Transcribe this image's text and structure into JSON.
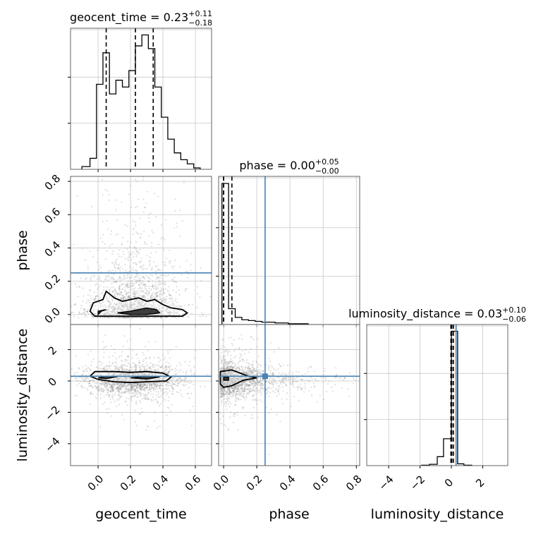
{
  "chart_data": {
    "type": "corner",
    "parameters": [
      "geocent_time",
      "phase",
      "luminosity_distance"
    ],
    "truths": {
      "geocent_time": null,
      "phase": 0.25,
      "luminosity_distance": 0.3
    },
    "colors": {
      "hist": "#000000",
      "truth": "#4682b4",
      "grid": "#c8c8c8",
      "scatter": "#8c8c8c"
    },
    "grid": true,
    "panels": {
      "hist_geocent_time": {
        "title": {
          "prefix": "geocent_time = ",
          "value": "0.23",
          "upper": "+0.11",
          "lower": "−0.18"
        },
        "quantiles": [
          0.05,
          0.23,
          0.34
        ],
        "xlim": [
          -0.17,
          0.7
        ],
        "bin_edges": [
          -0.1,
          -0.05,
          -0.01,
          0.03,
          0.07,
          0.11,
          0.15,
          0.19,
          0.23,
          0.27,
          0.31,
          0.35,
          0.39,
          0.43,
          0.47,
          0.51,
          0.55,
          0.59,
          0.63
        ],
        "counts": [
          2,
          8,
          62,
          85,
          55,
          65,
          60,
          72,
          90,
          98,
          88,
          60,
          38,
          22,
          12,
          7,
          4,
          1
        ]
      },
      "hist_phase": {
        "title": {
          "prefix": "phase = ",
          "value": "0.00",
          "upper": "+0.05",
          "lower": "−0.00"
        },
        "quantiles": [
          0.0,
          0.0,
          0.05
        ],
        "xlim": [
          -0.03,
          0.82
        ],
        "bin_edges": [
          -0.01,
          0.03,
          0.07,
          0.11,
          0.15,
          0.19,
          0.23,
          0.27,
          0.31,
          0.35,
          0.39,
          0.43,
          0.47,
          0.51
        ],
        "counts": [
          178,
          20,
          9,
          6,
          5,
          4,
          3,
          3,
          2,
          2,
          1,
          1,
          1
        ]
      },
      "hist_luminosity_distance": {
        "title": {
          "prefix": "luminosity_distance = ",
          "value": "0.03",
          "upper": "+0.10",
          "lower": "−0.06"
        },
        "quantiles": [
          -0.03,
          0.03,
          0.13
        ],
        "xlim": [
          -5.4,
          3.6
        ],
        "bin_edges": [
          -1.9,
          -1.4,
          -0.9,
          -0.5,
          0.0,
          0.4,
          0.8,
          1.3
        ],
        "counts": [
          1,
          3,
          20,
          60,
          300,
          4,
          1
        ]
      },
      "scatter_phase_vs_geocent_time": {
        "xlim": [
          -0.17,
          0.7
        ],
        "ylim": [
          -0.06,
          0.83
        ],
        "contours": [
          [
            [
              -0.05,
              0.02
            ],
            [
              -0.03,
              0.07
            ],
            [
              0.03,
              0.09
            ],
            [
              0.05,
              0.14
            ],
            [
              0.1,
              0.1
            ],
            [
              0.15,
              0.08
            ],
            [
              0.2,
              0.09
            ],
            [
              0.25,
              0.1
            ],
            [
              0.3,
              0.08
            ],
            [
              0.35,
              0.09
            ],
            [
              0.4,
              0.06
            ],
            [
              0.45,
              0.04
            ],
            [
              0.52,
              0.03
            ],
            [
              0.55,
              0.01
            ],
            [
              0.52,
              -0.01
            ],
            [
              0.45,
              -0.01
            ],
            [
              0.35,
              -0.01
            ],
            [
              0.25,
              -0.01
            ],
            [
              0.15,
              -0.01
            ],
            [
              0.05,
              -0.01
            ],
            [
              -0.02,
              -0.01
            ],
            [
              -0.05,
              0.02
            ]
          ],
          [
            [
              0.0,
              0.0
            ],
            [
              0.0,
              0.02
            ],
            [
              0.05,
              0.03
            ],
            [
              0.02,
              0.02
            ],
            [
              0.0,
              0.0
            ]
          ],
          [
            [
              0.12,
              0.01
            ],
            [
              0.2,
              0.02
            ],
            [
              0.3,
              0.04
            ],
            [
              0.36,
              0.03
            ],
            [
              0.38,
              0.01
            ],
            [
              0.3,
              0.0
            ],
            [
              0.2,
              0.0
            ],
            [
              0.12,
              0.01
            ]
          ]
        ],
        "points": {
          "count": 1800,
          "mean_x": 0.22,
          "sd_x": 0.15,
          "phase_scale": 0.1
        }
      },
      "scatter_luminosity_distance_vs_geocent_time": {
        "xlim": [
          -0.17,
          0.7
        ],
        "ylim": [
          -5.4,
          3.6
        ],
        "contours": [
          [
            [
              -0.05,
              0.3
            ],
            [
              -0.02,
              0.6
            ],
            [
              0.1,
              0.6
            ],
            [
              0.2,
              0.55
            ],
            [
              0.3,
              0.6
            ],
            [
              0.4,
              0.5
            ],
            [
              0.45,
              0.25
            ],
            [
              0.42,
              0.0
            ],
            [
              0.3,
              -0.05
            ],
            [
              0.2,
              -0.1
            ],
            [
              0.1,
              -0.05
            ],
            [
              0.0,
              0.1
            ],
            [
              -0.05,
              0.3
            ]
          ],
          [
            [
              0.0,
              0.2
            ],
            [
              0.05,
              0.3
            ],
            [
              0.12,
              0.28
            ],
            [
              0.05,
              0.15
            ],
            [
              0.0,
              0.2
            ]
          ],
          [
            [
              0.2,
              0.2
            ],
            [
              0.3,
              0.3
            ],
            [
              0.38,
              0.25
            ],
            [
              0.3,
              0.12
            ],
            [
              0.2,
              0.2
            ]
          ]
        ],
        "points": {
          "count": 1800,
          "mean_x": 0.22,
          "sd_x": 0.15,
          "mean_y": 0.05,
          "sd_y": 0.7
        }
      },
      "scatter_luminosity_distance_vs_phase": {
        "xlim": [
          -0.03,
          0.82
        ],
        "ylim": [
          -5.4,
          3.6
        ],
        "contours": [
          [
            [
              -0.02,
              0.6
            ],
            [
              0.05,
              0.7
            ],
            [
              0.1,
              0.5
            ],
            [
              0.15,
              0.3
            ],
            [
              0.2,
              0.2
            ],
            [
              0.12,
              0.05
            ],
            [
              0.05,
              -0.3
            ],
            [
              0.0,
              -0.4
            ],
            [
              -0.02,
              -0.2
            ],
            [
              -0.02,
              0.6
            ]
          ],
          [
            [
              0.0,
              0.05
            ],
            [
              0.03,
              0.05
            ],
            [
              0.03,
              0.25
            ],
            [
              0.0,
              0.25
            ],
            [
              0.0,
              0.05
            ]
          ]
        ],
        "points": {
          "count": 1800,
          "phase_scale": 0.1,
          "mean_y": 0.05,
          "sd_y": 0.7
        }
      }
    },
    "x_axes": {
      "geocent_time": {
        "label": "geocent_time",
        "ticks": [
          0.0,
          0.2,
          0.4,
          0.6
        ],
        "tick_labels": [
          "0.0",
          "0.2",
          "0.4",
          "0.6"
        ]
      },
      "phase": {
        "label": "phase",
        "ticks": [
          0.0,
          0.2,
          0.4,
          0.6,
          0.8
        ],
        "tick_labels": [
          "0.0",
          "0.2",
          "0.4",
          "0.6",
          "0.8"
        ]
      },
      "luminosity_distance": {
        "label": "luminosity_distance",
        "ticks": [
          -4,
          -2,
          0,
          2
        ],
        "tick_labels": [
          "−4",
          "−2",
          "0",
          "2"
        ]
      }
    },
    "y_axes": {
      "phase": {
        "label": "phase",
        "ticks": [
          0.0,
          0.2,
          0.4,
          0.6,
          0.8
        ],
        "tick_labels": [
          "0.0",
          "0.2",
          "0.4",
          "0.6",
          "0.8"
        ]
      },
      "luminosity_distance": {
        "label": "luminosity_distance",
        "ticks": [
          -4,
          -2,
          0,
          2
        ],
        "tick_labels": [
          "−4",
          "−2",
          "0",
          "2"
        ]
      }
    }
  }
}
